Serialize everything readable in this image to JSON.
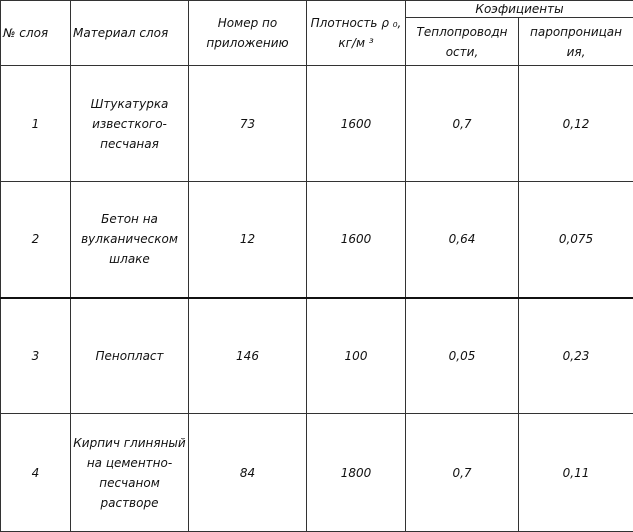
{
  "headers": {
    "layer_no": "№ слоя",
    "material": "Материал слоя",
    "appendix_no": "Номер по приложению",
    "density": "Плотность ρ ₀, кг/м ³",
    "coefficients": "Коэфициенты",
    "thermal": "Теплопроводн ости,",
    "vapor": "паропроницан ия,"
  },
  "rows": [
    {
      "no": "1",
      "material": "Штукатурка известкого-песчаная",
      "appendix": "73",
      "density": "1600",
      "thermal": "0,7",
      "vapor": "0,12"
    },
    {
      "no": "2",
      "material": "Бетон на вулканическом шлаке",
      "appendix": "12",
      "density": "1600",
      "thermal": "0,64",
      "vapor": "0,075"
    },
    {
      "no": "3",
      "material": "Пенопласт",
      "appendix": "146",
      "density": "100",
      "thermal": "0,05",
      "vapor": "0,23"
    },
    {
      "no": "4",
      "material": "Кирпич глиняный на цементно-песчаном растворе",
      "appendix": "84",
      "density": "1800",
      "thermal": "0,7",
      "vapor": "0,11"
    }
  ]
}
